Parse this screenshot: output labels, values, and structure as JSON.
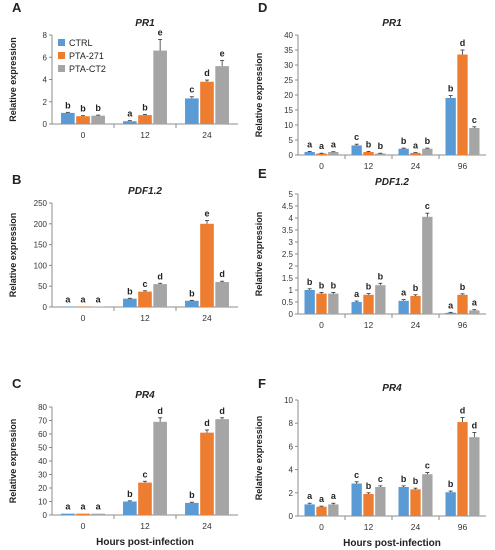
{
  "colors": {
    "CTRL": "#5b9bd5",
    "PTA-271": "#ed7d31",
    "PTA-CT2": "#a5a5a5"
  },
  "legend": [
    "CTRL",
    "PTA-271",
    "PTA-CT2"
  ],
  "xlabel": "Hours post-infection",
  "ylabel": "Relative expression",
  "chart_data": [
    {
      "panel": "A",
      "type": "bar",
      "title": "PR1",
      "ylabel": "Relative expression",
      "xlabel": "",
      "ylim": [
        0,
        8
      ],
      "yticks": [
        0,
        2,
        4,
        6,
        8
      ],
      "categories": [
        "0",
        "12",
        "24"
      ],
      "legend": "top-left",
      "series": [
        {
          "name": "CTRL",
          "values": [
            1.0,
            0.25,
            2.3
          ],
          "errors": [
            0.05,
            0.05,
            0.15
          ],
          "letters": [
            "b",
            "a",
            "c"
          ]
        },
        {
          "name": "PTA-271",
          "values": [
            0.7,
            0.8,
            3.8
          ],
          "errors": [
            0.05,
            0.05,
            0.15
          ],
          "letters": [
            "b",
            "b",
            "d"
          ]
        },
        {
          "name": "PTA-CT2",
          "values": [
            0.75,
            6.6,
            5.2
          ],
          "errors": [
            0.05,
            1.0,
            0.5
          ],
          "letters": [
            "b",
            "e",
            "e"
          ]
        }
      ]
    },
    {
      "panel": "B",
      "type": "bar",
      "title": "PDF1.2",
      "ylabel": "Relative expression",
      "xlabel": "",
      "ylim": [
        0,
        250
      ],
      "yticks": [
        0,
        50,
        100,
        150,
        200,
        250
      ],
      "categories": [
        "0",
        "12",
        "24"
      ],
      "series": [
        {
          "name": "CTRL",
          "values": [
            1,
            20,
            15
          ],
          "errors": [
            0,
            1,
            1
          ],
          "letters": [
            "a",
            "b",
            "b"
          ]
        },
        {
          "name": "PTA-271",
          "values": [
            1,
            37,
            200
          ],
          "errors": [
            0,
            2,
            8
          ],
          "letters": [
            "a",
            "c",
            "e"
          ]
        },
        {
          "name": "PTA-CT2",
          "values": [
            1,
            55,
            60
          ],
          "errors": [
            0,
            2,
            2
          ],
          "letters": [
            "a",
            "d",
            "d"
          ]
        }
      ]
    },
    {
      "panel": "C",
      "type": "bar",
      "title": "PR4",
      "ylabel": "Relative expression",
      "xlabel": "Hours post-infection",
      "ylim": [
        0,
        80
      ],
      "yticks": [
        0,
        10,
        20,
        30,
        40,
        50,
        60,
        70,
        80
      ],
      "categories": [
        "0",
        "12",
        "24"
      ],
      "series": [
        {
          "name": "CTRL",
          "values": [
            1,
            10,
            9
          ],
          "errors": [
            0,
            0.5,
            0.5
          ],
          "letters": [
            "a",
            "b",
            "b"
          ]
        },
        {
          "name": "PTA-271",
          "values": [
            1,
            24,
            61
          ],
          "errors": [
            0,
            1,
            2
          ],
          "letters": [
            "a",
            "c",
            "d"
          ]
        },
        {
          "name": "PTA-CT2",
          "values": [
            1,
            69,
            71
          ],
          "errors": [
            0,
            3,
            1
          ],
          "letters": [
            "a",
            "d",
            "d"
          ]
        }
      ]
    },
    {
      "panel": "D",
      "type": "bar",
      "title": "PR1",
      "ylabel": "Relative expression",
      "xlabel": "",
      "ylim": [
        0,
        40
      ],
      "yticks": [
        0,
        5,
        10,
        15,
        20,
        25,
        30,
        35,
        40
      ],
      "categories": [
        "0",
        "12",
        "24",
        "96"
      ],
      "series": [
        {
          "name": "CTRL",
          "values": [
            1,
            3.2,
            2.1,
            19
          ],
          "errors": [
            0.2,
            0.4,
            0.2,
            0.8
          ],
          "letters": [
            "a",
            "c",
            "b",
            "b"
          ]
        },
        {
          "name": "PTA-271",
          "values": [
            0.5,
            1,
            0.7,
            33.5
          ],
          "errors": [
            0.1,
            0.2,
            0.1,
            1.5
          ],
          "letters": [
            "a",
            "b",
            "a",
            "d"
          ]
        },
        {
          "name": "PTA-CT2",
          "values": [
            1,
            0.5,
            2.1,
            9
          ],
          "errors": [
            0.1,
            0.1,
            0.2,
            0.4
          ],
          "letters": [
            "a",
            "b",
            "b",
            "c"
          ]
        }
      ]
    },
    {
      "panel": "E",
      "type": "bar",
      "title": "PDF1.2",
      "ylabel": "Relative expression",
      "xlabel": "",
      "ylim": [
        0,
        5
      ],
      "yticks": [
        0,
        0.5,
        1,
        1.5,
        2,
        2.5,
        3,
        3.5,
        4,
        4.5,
        5
      ],
      "categories": [
        "0",
        "12",
        "24",
        "96"
      ],
      "series": [
        {
          "name": "CTRL",
          "values": [
            1.0,
            0.5,
            0.55,
            0.05
          ],
          "errors": [
            0.05,
            0.04,
            0.05,
            0.02
          ],
          "letters": [
            "b",
            "a",
            "a",
            "a"
          ]
        },
        {
          "name": "PTA-271",
          "values": [
            0.85,
            0.8,
            0.75,
            0.8
          ],
          "errors": [
            0.05,
            0.05,
            0.05,
            0.04
          ],
          "letters": [
            "b",
            "b",
            "b",
            "b"
          ]
        },
        {
          "name": "PTA-CT2",
          "values": [
            0.85,
            1.2,
            4.05,
            0.15
          ],
          "errors": [
            0.05,
            0.08,
            0.15,
            0.03
          ],
          "letters": [
            "b",
            "b",
            "c",
            "a"
          ]
        }
      ]
    },
    {
      "panel": "F",
      "type": "bar",
      "title": "PR4",
      "ylabel": "Relative expression",
      "xlabel": "Hours post-infection",
      "ylim": [
        0,
        10
      ],
      "yticks": [
        0,
        2,
        4,
        6,
        8,
        10
      ],
      "categories": [
        "0",
        "12",
        "24",
        "96"
      ],
      "series": [
        {
          "name": "CTRL",
          "values": [
            1,
            2.8,
            2.5,
            2.05
          ],
          "errors": [
            0.1,
            0.15,
            0.1,
            0.1
          ],
          "letters": [
            "a",
            "c",
            "b",
            "b"
          ]
        },
        {
          "name": "PTA-271",
          "values": [
            0.8,
            1.9,
            2.3,
            8.1
          ],
          "errors": [
            0.05,
            0.1,
            0.1,
            0.4
          ],
          "letters": [
            "a",
            "b",
            "b",
            "d"
          ]
        },
        {
          "name": "PTA-CT2",
          "values": [
            1,
            2.5,
            3.6,
            6.8
          ],
          "errors": [
            0.1,
            0.1,
            0.15,
            0.4
          ],
          "letters": [
            "a",
            "c",
            "c",
            "d"
          ]
        }
      ]
    }
  ]
}
